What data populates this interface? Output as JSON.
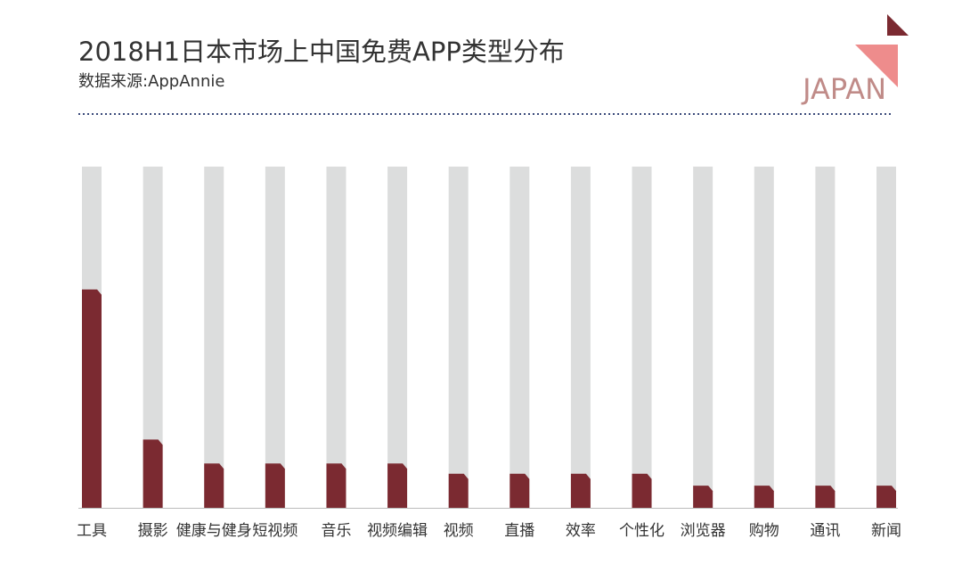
{
  "chart_data": {
    "type": "bar",
    "title": "2018H1日本市场上中国免费APP类型分布",
    "subtitle": "数据来源:AppAnnie",
    "categories": [
      "工具",
      "摄影",
      "健康与健身",
      "短视频",
      "音乐",
      "视频编辑",
      "视频",
      "直播",
      "效率",
      "个性化",
      "浏览器",
      "购物",
      "通讯",
      "新闻"
    ],
    "values": [
      64,
      20,
      13,
      13,
      13,
      13,
      10,
      10,
      10,
      10,
      6.5,
      6.5,
      6.5,
      6.5
    ],
    "color": "#7b2a31",
    "ylim": [
      0,
      100
    ]
  },
  "brand": "JAPAN"
}
